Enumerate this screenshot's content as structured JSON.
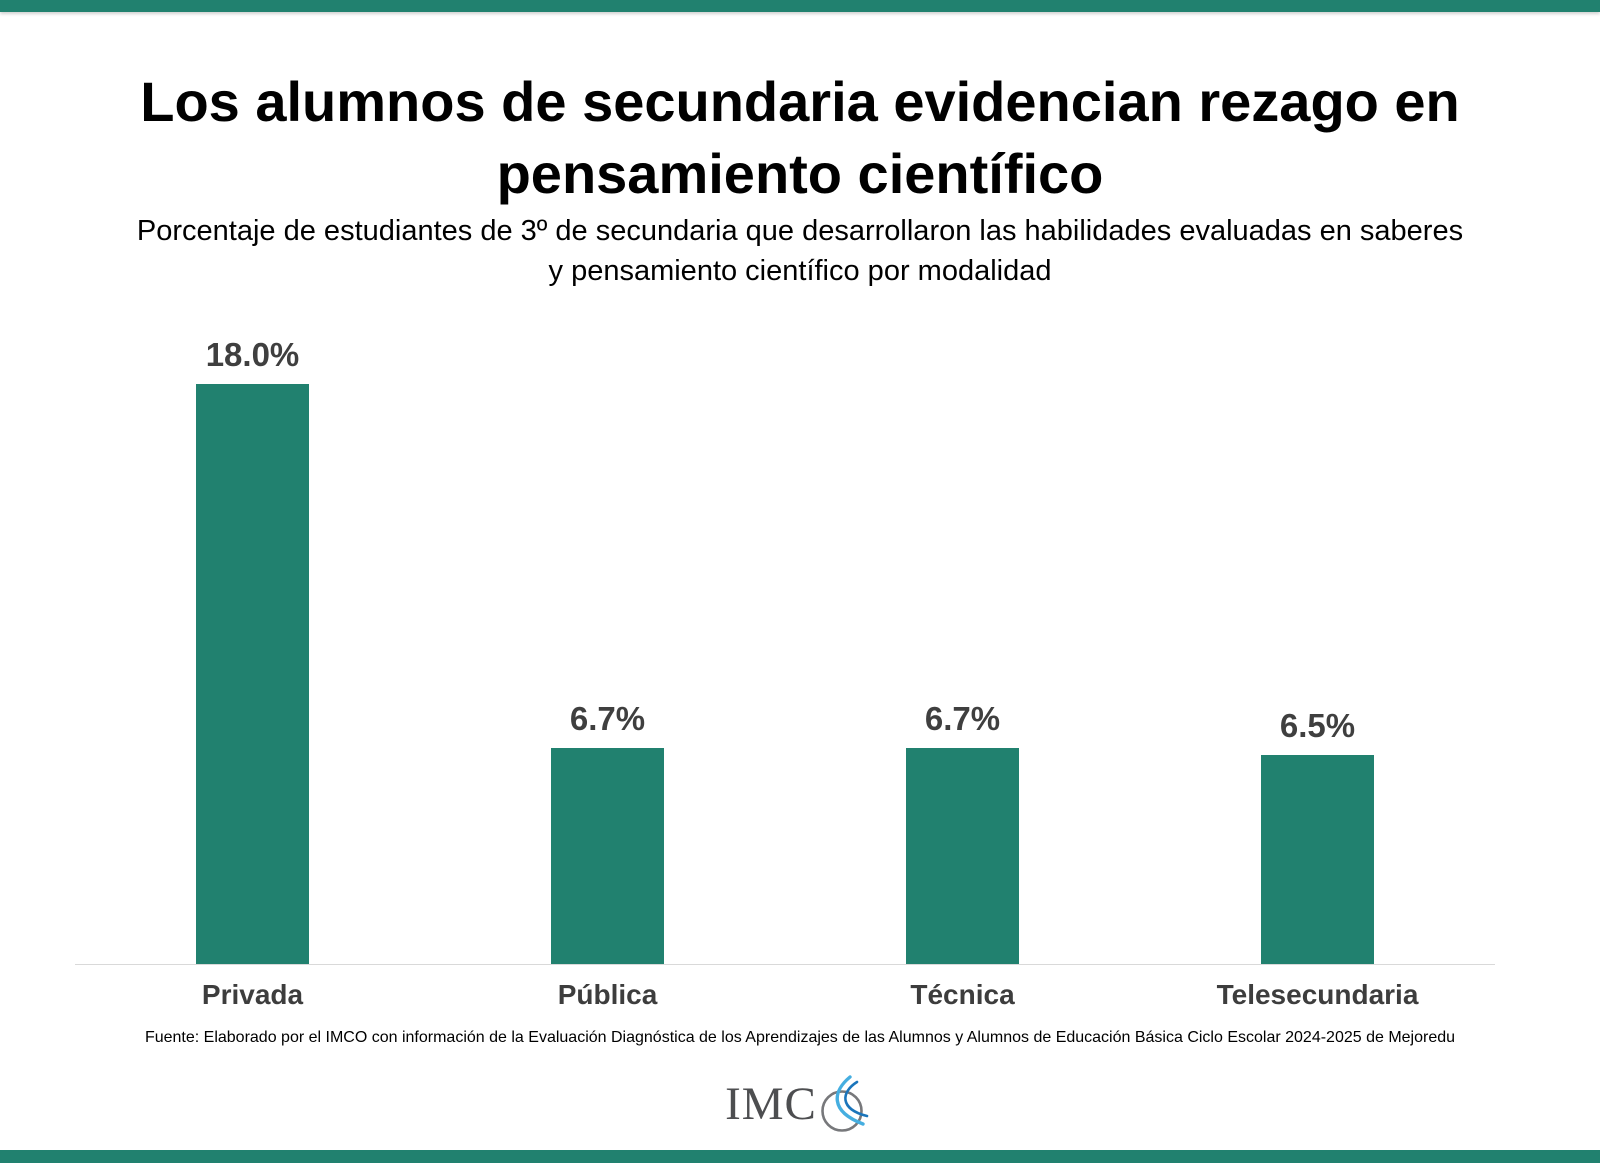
{
  "page": {
    "accent_color": "#21816F",
    "background_color": "#ffffff"
  },
  "header": {
    "title": "Los alumnos de secundaria evidencian rezago en pensamiento científico",
    "subtitle": "Porcentaje de estudiantes de 3º de secundaria que desarrollaron las habilidades evaluadas en saberes y pensamiento científico por modalidad"
  },
  "chart_data": {
    "type": "bar",
    "title": "Los alumnos de secundaria evidencian rezago en pensamiento científico",
    "subtitle": "Porcentaje de estudiantes de 3º de secundaria que desarrollaron las habilidades evaluadas en saberes y pensamiento científico por modalidad",
    "categories": [
      "Privada",
      "Pública",
      "Técnica",
      "Telesecundaria"
    ],
    "values": [
      18.0,
      6.7,
      6.7,
      6.5
    ],
    "value_labels": [
      "18.0%",
      "6.7%",
      "6.7%",
      "6.5%"
    ],
    "xlabel": "",
    "ylabel": "",
    "ylim": [
      0,
      18
    ],
    "grid": false,
    "legend": false,
    "bar_color": "#21816F",
    "value_label_color": "#3f3f3f",
    "axis_label_color": "#3d3d3d",
    "baseline_color": "#d9d9d9"
  },
  "footer": {
    "source": "Fuente: Elaborado por el IMCO con información de la Evaluación Diagnóstica de los Aprendizajes de las Alumnos y Alumnos de Educación Básica Ciclo Escolar 2024-2025 de Mejoredu",
    "logo_text": "IMC"
  }
}
